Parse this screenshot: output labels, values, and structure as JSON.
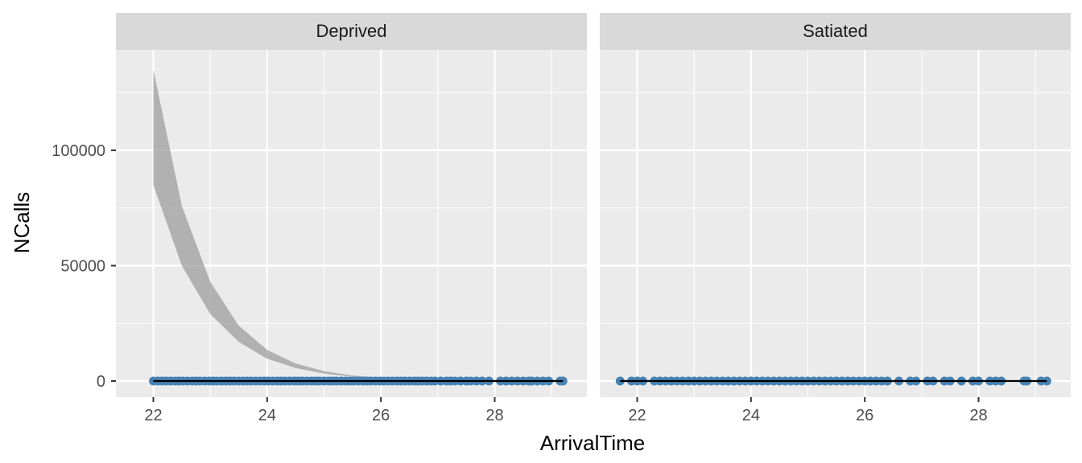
{
  "chart_data": {
    "type": "scatter",
    "xlabel": "ArrivalTime",
    "ylabel": "NCalls",
    "xlim": [
      21.35,
      29.55
    ],
    "ylim": [
      -6700,
      140000
    ],
    "x_ticks": [
      22,
      24,
      26,
      28
    ],
    "y_ticks": [
      0,
      50000,
      100000
    ],
    "grid": true,
    "colors": {
      "panel_bg": "#ebebeb",
      "strip_bg": "#d9d9d9",
      "grid": "#ffffff",
      "points": "#4682b4",
      "fit_line": "#000000",
      "ribbon": "#999999",
      "tick_text": "#4d4d4d"
    },
    "facets": [
      {
        "label": "Deprived",
        "x_range": [
          22.0,
          29.2
        ],
        "fit_line": {
          "x": [
            22.0,
            29.2
          ],
          "y": [
            0,
            0
          ]
        },
        "ribbon": {
          "x": [
            22.0,
            22.5,
            23.0,
            23.5,
            24.0,
            24.5,
            25.0,
            25.5,
            26.0,
            26.5,
            27.0,
            28.0,
            29.0
          ],
          "lower": [
            85000,
            50000,
            29000,
            17000,
            9700,
            5600,
            3200,
            1800,
            1000,
            600,
            300,
            100,
            50
          ],
          "upper": [
            135000,
            76000,
            43000,
            24000,
            13500,
            7600,
            4300,
            2400,
            1350,
            760,
            430,
            130,
            60
          ]
        },
        "points": {
          "x": [
            22.0,
            22.08,
            22.15,
            22.22,
            22.3,
            22.38,
            22.45,
            22.52,
            22.6,
            22.68,
            22.75,
            22.82,
            22.9,
            22.98,
            23.05,
            23.12,
            23.2,
            23.28,
            23.35,
            23.42,
            23.5,
            23.58,
            23.65,
            23.72,
            23.8,
            23.88,
            23.95,
            24.02,
            24.1,
            24.18,
            24.25,
            24.32,
            24.4,
            24.48,
            24.55,
            24.62,
            24.7,
            24.78,
            24.85,
            24.92,
            25.0,
            25.08,
            25.15,
            25.22,
            25.3,
            25.38,
            25.45,
            25.52,
            25.6,
            25.68,
            25.75,
            25.82,
            25.9,
            25.98,
            26.05,
            26.12,
            26.2,
            26.28,
            26.35,
            26.42,
            26.5,
            26.58,
            26.65,
            26.72,
            26.8,
            26.88,
            26.95,
            27.05,
            27.15,
            27.22,
            27.3,
            27.4,
            27.5,
            27.58,
            27.68,
            27.78,
            27.9,
            28.1,
            28.2,
            28.3,
            28.4,
            28.5,
            28.6,
            28.65,
            28.75,
            28.85,
            28.95,
            29.15,
            29.2
          ],
          "y": [
            0,
            0,
            0,
            0,
            0,
            0,
            0,
            0,
            0,
            0,
            0,
            0,
            0,
            0,
            0,
            0,
            0,
            0,
            0,
            0,
            0,
            0,
            0,
            0,
            0,
            0,
            0,
            0,
            0,
            0,
            0,
            0,
            0,
            0,
            0,
            0,
            0,
            0,
            0,
            0,
            0,
            0,
            0,
            0,
            0,
            0,
            0,
            0,
            0,
            0,
            0,
            0,
            0,
            0,
            0,
            0,
            0,
            0,
            0,
            0,
            0,
            0,
            0,
            0,
            0,
            0,
            0,
            0,
            0,
            0,
            0,
            0,
            0,
            0,
            0,
            0,
            0,
            0,
            0,
            0,
            0,
            0,
            0,
            0,
            0,
            0,
            0,
            0,
            0
          ]
        }
      },
      {
        "label": "Satiated",
        "x_range": [
          21.7,
          29.2
        ],
        "fit_line": {
          "x": [
            21.7,
            29.2
          ],
          "y": [
            0,
            0
          ]
        },
        "ribbon": null,
        "points": {
          "x": [
            21.7,
            21.9,
            22.0,
            22.1,
            22.3,
            22.4,
            22.5,
            22.6,
            22.7,
            22.8,
            22.9,
            23.0,
            23.1,
            23.2,
            23.3,
            23.4,
            23.5,
            23.6,
            23.7,
            23.8,
            23.9,
            24.0,
            24.1,
            24.2,
            24.3,
            24.4,
            24.5,
            24.6,
            24.7,
            24.8,
            24.9,
            25.0,
            25.1,
            25.2,
            25.3,
            25.4,
            25.5,
            25.6,
            25.7,
            25.8,
            25.9,
            26.0,
            26.1,
            26.2,
            26.3,
            26.4,
            26.6,
            26.8,
            26.9,
            27.1,
            27.2,
            27.4,
            27.5,
            27.7,
            27.9,
            28.0,
            28.2,
            28.3,
            28.4,
            28.8,
            28.85,
            29.1,
            29.2
          ],
          "y": [
            0,
            0,
            0,
            0,
            0,
            0,
            0,
            0,
            0,
            0,
            0,
            0,
            0,
            0,
            0,
            0,
            0,
            0,
            0,
            0,
            0,
            0,
            0,
            0,
            0,
            0,
            0,
            0,
            0,
            0,
            0,
            0,
            0,
            0,
            0,
            0,
            0,
            0,
            0,
            0,
            0,
            0,
            0,
            0,
            0,
            0,
            0,
            0,
            0,
            0,
            0,
            0,
            0,
            0,
            0,
            0,
            0,
            0,
            0,
            0,
            0,
            0,
            0
          ]
        }
      }
    ]
  }
}
